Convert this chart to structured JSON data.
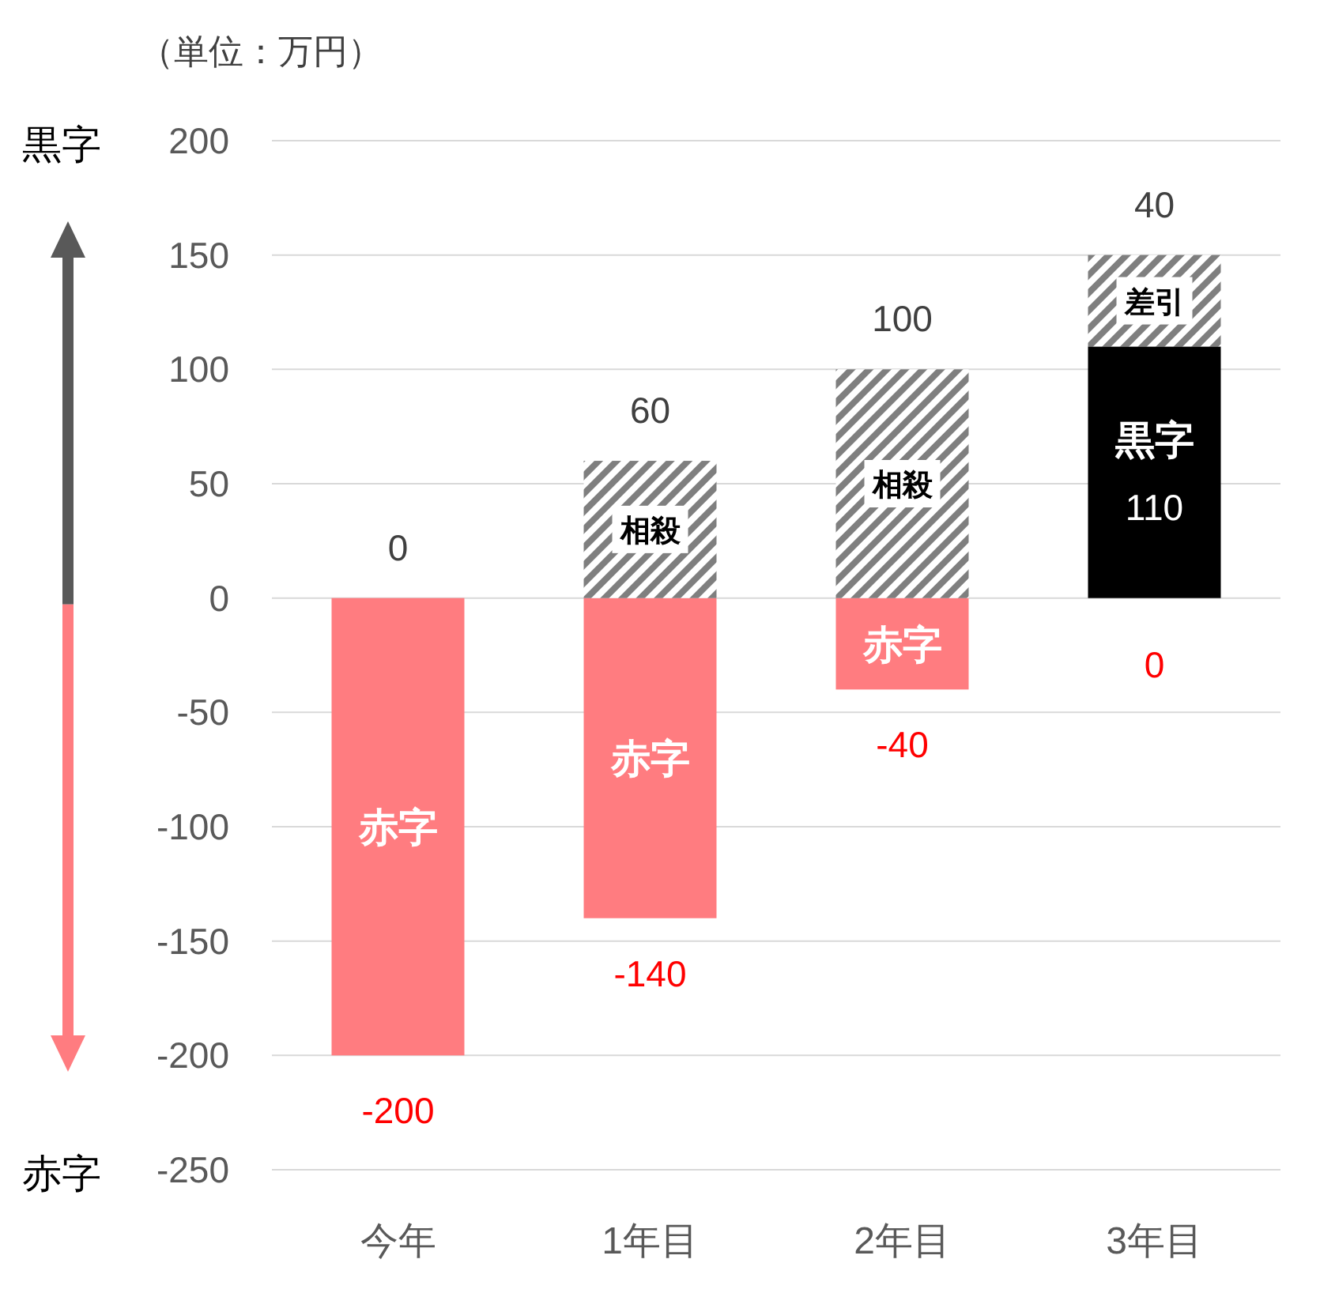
{
  "chart_data": {
    "type": "bar",
    "stacked": true,
    "categories": [
      "今年",
      "1年目",
      "2年目",
      "3年目"
    ],
    "series": [
      {
        "name": "赤字",
        "color": "#ff7c80",
        "values": [
          -200,
          -140,
          -40,
          null
        ],
        "value_labels": [
          "-200",
          "-140",
          "-40",
          null
        ]
      },
      {
        "name": "黒字",
        "color": "#000000",
        "values": [
          null,
          null,
          null,
          110
        ],
        "value_labels": [
          null,
          null,
          null,
          "110"
        ]
      },
      {
        "name": "相殺",
        "color": "#7f7f7f",
        "values": [
          0,
          60,
          100,
          null
        ],
        "value_labels": [
          "0",
          "60",
          "100",
          null
        ]
      },
      {
        "name": "差引",
        "color": "#7f7f7f",
        "values": [
          null,
          null,
          null,
          40
        ],
        "value_labels": [
          null,
          null,
          null,
          "40"
        ]
      }
    ],
    "ylim": [
      -250,
      200
    ],
    "yticks": [
      -250,
      -200,
      -150,
      -100,
      -50,
      0,
      50,
      100,
      150,
      200
    ],
    "grid": "y",
    "annotations": [
      "（単位：万円）",
      "黒字",
      "赤字",
      {
        "text": "0",
        "x": "3年目",
        "y": 0
      }
    ]
  }
}
